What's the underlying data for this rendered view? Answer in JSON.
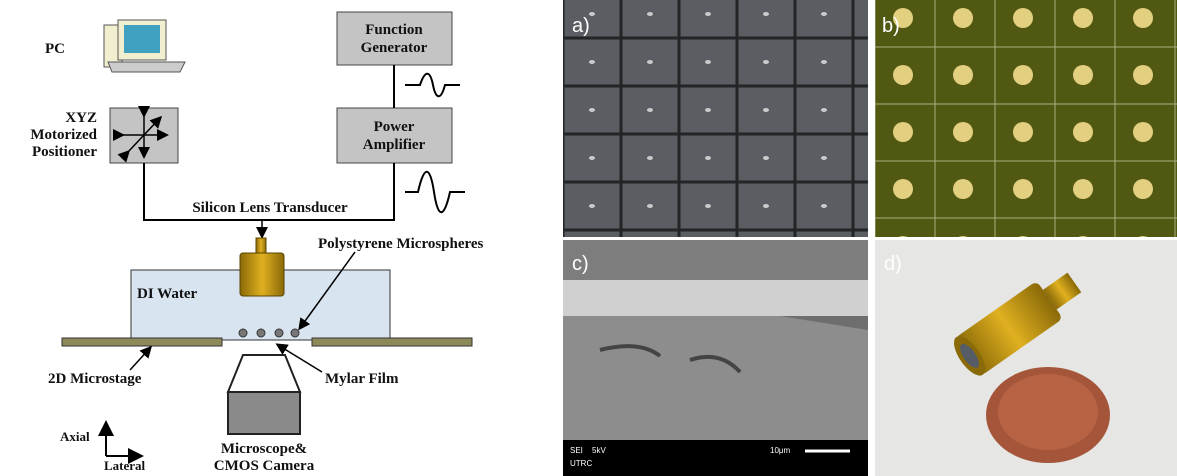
{
  "diagram": {
    "pc": "PC",
    "function_generator": [
      "Function",
      "Generator"
    ],
    "positioner": [
      "XYZ",
      "Motorized",
      "Positioner"
    ],
    "power_amplifier": [
      "Power",
      "Amplifier"
    ],
    "transducer": "Silicon Lens Transducer",
    "microspheres": "Polystyrene Microspheres",
    "water": "DI Water",
    "microstage": "2D Microstage",
    "film": "Mylar Film",
    "camera": [
      "Microscope&",
      "CMOS Camera"
    ],
    "axes": {
      "axial": "Axial",
      "lateral": "Lateral"
    }
  },
  "photos": {
    "a": "a)",
    "b": "b)",
    "c": "c)",
    "d": "d)",
    "sem": {
      "mode": "SEI",
      "voltage": "5kV",
      "scale": "10μm",
      "lab": "UTRC"
    }
  }
}
